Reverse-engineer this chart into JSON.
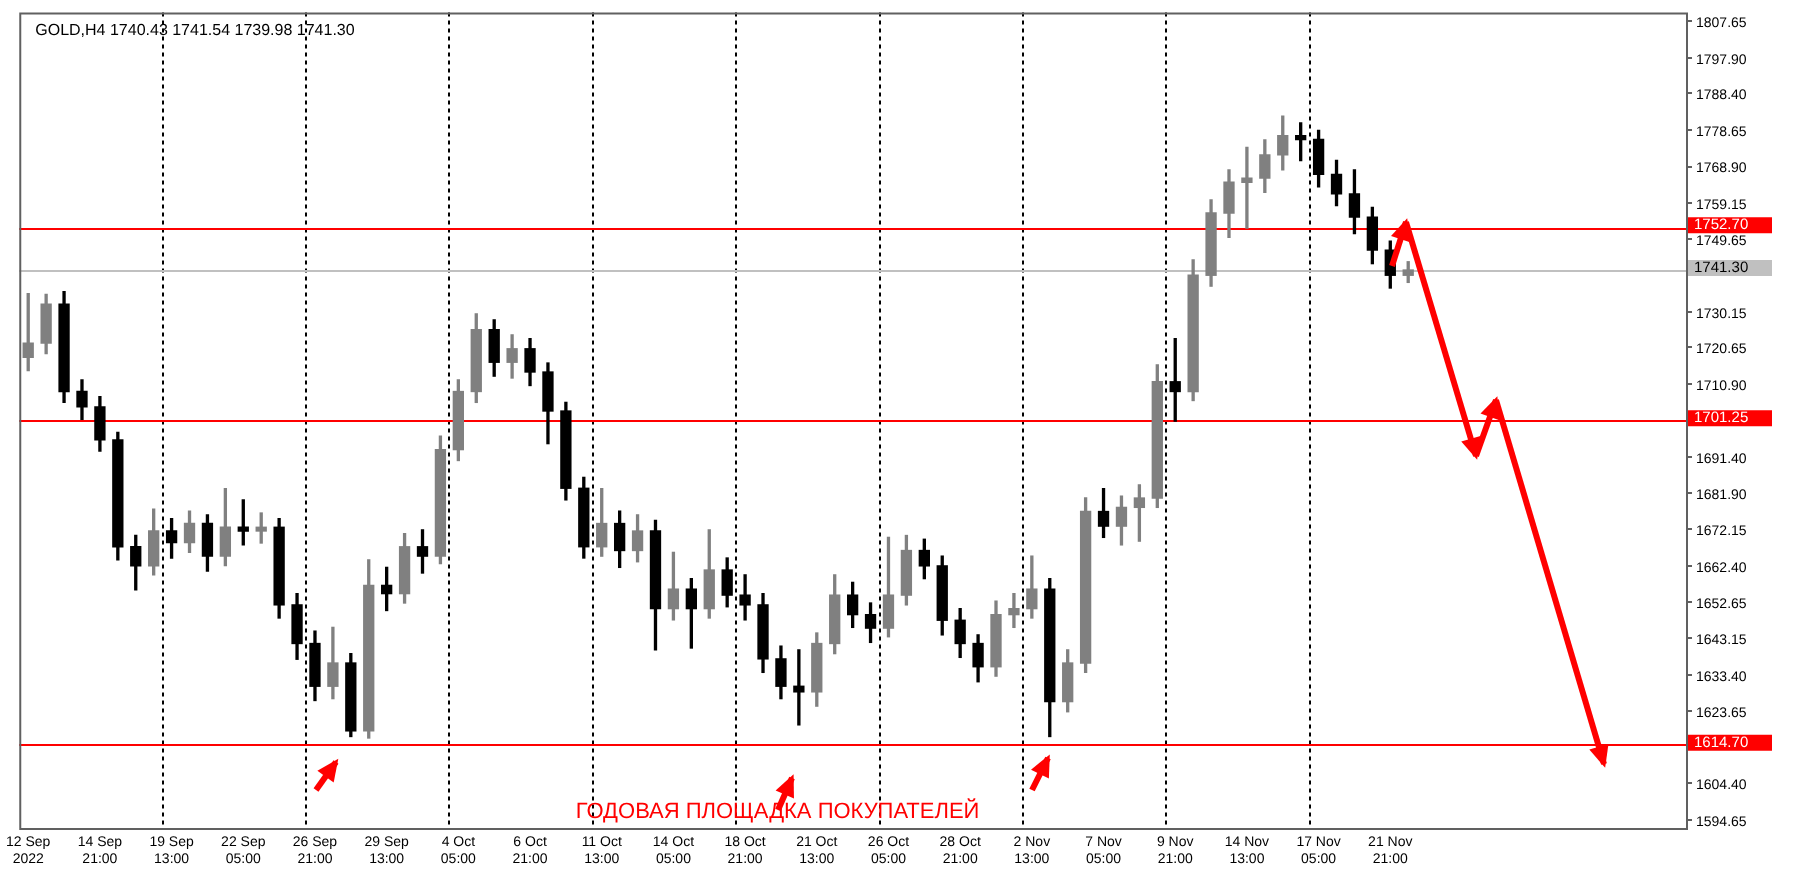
{
  "chart_data": {
    "type": "candlestick",
    "title": "GOLD,H4 1740.43 1741.54 1739.98 1741.30",
    "categories": [
      "12 Sep 2022",
      null,
      null,
      null,
      "14 Sep 21:00",
      null,
      null,
      null,
      "19 Sep 13:00",
      null,
      null,
      null,
      "22 Sep 05:00",
      null,
      null,
      null,
      "26 Sep 21:00",
      null,
      null,
      null,
      "29 Sep 13:00",
      null,
      null,
      null,
      "4 Oct 05:00",
      null,
      null,
      null,
      "6 Oct 21:00",
      null,
      null,
      null,
      "11 Oct 13:00",
      null,
      null,
      null,
      "14 Oct 05:00",
      null,
      null,
      null,
      "18 Oct 21:00",
      null,
      null,
      null,
      "21 Oct 13:00",
      null,
      null,
      null,
      "26 Oct 05:00",
      null,
      null,
      null,
      "28 Oct 21:00",
      null,
      null,
      null,
      "2 Nov 13:00",
      null,
      null,
      null,
      "7 Nov 05:00",
      null,
      null,
      null,
      "9 Nov 21:00",
      null,
      null,
      null,
      "14 Nov 13:00",
      null,
      null,
      null,
      "17 Nov 05:00",
      null,
      null,
      null,
      "21 Nov 21:00",
      null,
      null,
      null,
      null,
      null,
      null,
      null,
      null,
      null,
      null,
      null,
      null,
      null,
      null,
      null,
      null
    ],
    "ohlc": [
      [
        1718.0,
        1735.0,
        1714.5,
        1721.8
      ],
      [
        1721.8,
        1734.8,
        1719.0,
        1732.2
      ],
      [
        1732.2,
        1735.5,
        1706.0,
        1708.9
      ],
      [
        1708.9,
        1712.0,
        1701.5,
        1704.8
      ],
      [
        1704.8,
        1707.5,
        1693.0,
        1696.0
      ],
      [
        1696.0,
        1698.0,
        1664.0,
        1667.5
      ],
      [
        1667.5,
        1670.5,
        1656.0,
        1662.4
      ],
      [
        1662.4,
        1677.5,
        1660.0,
        1671.7
      ],
      [
        1671.7,
        1675.0,
        1664.5,
        1668.6
      ],
      [
        1668.6,
        1677.0,
        1666.0,
        1673.7
      ],
      [
        1673.7,
        1676.0,
        1661.0,
        1665.0
      ],
      [
        1665.0,
        1683.0,
        1662.5,
        1672.7
      ],
      [
        1672.7,
        1680.0,
        1668.0,
        1671.7
      ],
      [
        1671.7,
        1676.5,
        1668.5,
        1672.7
      ],
      [
        1672.7,
        1675.0,
        1648.5,
        1652.0
      ],
      [
        1652.0,
        1655.0,
        1637.5,
        1641.7
      ],
      [
        1641.7,
        1645.0,
        1626.5,
        1630.3
      ],
      [
        1630.3,
        1646.0,
        1627.0,
        1636.5
      ],
      [
        1636.5,
        1639.0,
        1616.9,
        1618.4
      ],
      [
        1618.4,
        1664.0,
        1616.5,
        1657.2
      ],
      [
        1657.2,
        1662.0,
        1650.5,
        1655.0
      ],
      [
        1655.0,
        1671.0,
        1652.5,
        1667.5
      ],
      [
        1667.5,
        1672.0,
        1660.5,
        1665.0
      ],
      [
        1665.0,
        1697.0,
        1663.0,
        1693.4
      ],
      [
        1693.4,
        1712.0,
        1690.5,
        1708.9
      ],
      [
        1708.9,
        1729.6,
        1706.0,
        1725.4
      ],
      [
        1725.4,
        1728.0,
        1713.0,
        1716.7
      ],
      [
        1716.7,
        1724.0,
        1712.5,
        1720.3
      ],
      [
        1720.3,
        1723.0,
        1710.5,
        1714.1
      ],
      [
        1714.1,
        1716.5,
        1695.0,
        1703.7
      ],
      [
        1703.7,
        1706.0,
        1680.0,
        1683.1
      ],
      [
        1683.1,
        1686.0,
        1664.5,
        1667.5
      ],
      [
        1667.5,
        1683.0,
        1665.0,
        1673.7
      ],
      [
        1673.7,
        1677.0,
        1662.0,
        1666.5
      ],
      [
        1666.5,
        1676.0,
        1663.5,
        1671.7
      ],
      [
        1671.7,
        1674.5,
        1640.0,
        1651.0
      ],
      [
        1651.0,
        1666.0,
        1648.0,
        1656.2
      ],
      [
        1656.2,
        1659.0,
        1640.5,
        1651.0
      ],
      [
        1651.0,
        1672.0,
        1648.5,
        1661.3
      ],
      [
        1661.3,
        1664.5,
        1651.5,
        1654.6
      ],
      [
        1654.6,
        1660.0,
        1648.0,
        1652.0
      ],
      [
        1652.0,
        1655.0,
        1634.0,
        1637.6
      ],
      [
        1637.6,
        1641.0,
        1627.0,
        1630.3
      ],
      [
        1630.3,
        1640.0,
        1620.0,
        1628.8
      ],
      [
        1628.8,
        1644.5,
        1625.0,
        1641.7
      ],
      [
        1641.7,
        1660.0,
        1639.0,
        1654.6
      ],
      [
        1654.6,
        1658.0,
        1646.0,
        1649.4
      ],
      [
        1649.4,
        1652.5,
        1642.0,
        1645.8
      ],
      [
        1645.8,
        1670.0,
        1643.5,
        1654.6
      ],
      [
        1654.6,
        1670.5,
        1652.0,
        1666.5
      ],
      [
        1666.5,
        1669.5,
        1659.0,
        1662.4
      ],
      [
        1662.4,
        1665.0,
        1644.0,
        1647.9
      ],
      [
        1647.9,
        1651.0,
        1638.0,
        1641.7
      ],
      [
        1641.7,
        1644.0,
        1631.5,
        1635.5
      ],
      [
        1635.5,
        1653.0,
        1633.0,
        1649.4
      ],
      [
        1649.4,
        1655.0,
        1646.0,
        1651.0
      ],
      [
        1651.0,
        1665.0,
        1648.5,
        1656.2
      ],
      [
        1656.2,
        1659.0,
        1616.9,
        1626.2
      ],
      [
        1626.2,
        1640.0,
        1623.5,
        1636.5
      ],
      [
        1636.5,
        1680.5,
        1634.0,
        1676.9
      ],
      [
        1676.9,
        1683.0,
        1670.0,
        1673.0
      ],
      [
        1673.0,
        1681.0,
        1668.0,
        1678.0
      ],
      [
        1678.0,
        1684.0,
        1669.0,
        1680.5
      ],
      [
        1680.5,
        1716.0,
        1678.0,
        1711.5
      ],
      [
        1711.5,
        1723.0,
        1701.0,
        1708.9
      ],
      [
        1708.9,
        1744.0,
        1706.5,
        1739.9
      ],
      [
        1739.9,
        1760.0,
        1737.0,
        1756.5
      ],
      [
        1756.5,
        1768.0,
        1750.0,
        1764.7
      ],
      [
        1764.7,
        1774.0,
        1752.5,
        1765.8
      ],
      [
        1765.8,
        1776.0,
        1762.0,
        1772.0
      ],
      [
        1772.0,
        1782.3,
        1768.0,
        1777.1
      ],
      [
        1777.1,
        1780.5,
        1770.5,
        1776.1
      ],
      [
        1776.1,
        1778.5,
        1763.5,
        1766.8
      ],
      [
        1766.8,
        1770.5,
        1758.5,
        1761.6
      ],
      [
        1761.6,
        1768.0,
        1751.0,
        1755.4
      ],
      [
        1755.4,
        1758.0,
        1743.0,
        1746.6
      ],
      [
        1746.6,
        1749.0,
        1736.5,
        1739.9
      ],
      [
        1739.9,
        1743.5,
        1738.0,
        1741.3
      ],
      null,
      null,
      null,
      null,
      null,
      null,
      null,
      null,
      null,
      null,
      null,
      null,
      null,
      null,
      null
    ],
    "colors": [
      "#808080",
      "#808080",
      "#000000",
      "#000000",
      "#000000",
      "#000000",
      "#000000",
      "#808080",
      "#000000",
      "#808080",
      "#000000",
      "#808080",
      "#000000",
      "#808080",
      "#000000",
      "#000000",
      "#000000",
      "#808080",
      "#000000",
      "#808080",
      "#000000",
      "#808080",
      "#000000",
      "#808080",
      "#808080",
      "#808080",
      "#000000",
      "#808080",
      "#000000",
      "#000000",
      "#000000",
      "#000000",
      "#808080",
      "#000000",
      "#808080",
      "#000000",
      "#808080",
      "#000000",
      "#808080",
      "#000000",
      "#000000",
      "#000000",
      "#000000",
      "#000000",
      "#808080",
      "#808080",
      "#000000",
      "#000000",
      "#808080",
      "#808080",
      "#000000",
      "#000000",
      "#000000",
      "#000000",
      "#808080",
      "#808080",
      "#808080",
      "#000000",
      "#808080",
      "#808080",
      "#000000",
      "#808080",
      "#808080",
      "#808080",
      "#000000",
      "#808080",
      "#808080",
      "#808080",
      "#808080",
      "#808080",
      "#808080",
      "#000000",
      "#000000",
      "#000000",
      "#000000",
      "#000000",
      "#000000",
      "#808080",
      null,
      null,
      null,
      null,
      null,
      null,
      null,
      null,
      null,
      null,
      null,
      null,
      null,
      null,
      null
    ],
    "ylim": [
      1592.5,
      1810.0
    ],
    "yticks": [
      1807.65,
      {
        "value": 1797.9,
        "label": "1797.90"
      },
      {
        "value": 1788.4,
        "label": "1788.40"
      },
      1778.65,
      {
        "value": 1768.9,
        "label": "1768.90"
      },
      1759.15,
      1749.65,
      1730.15,
      1720.65,
      {
        "value": 1710.9,
        "label": "1710.90"
      },
      {
        "value": 1691.4,
        "label": "1691.40"
      },
      {
        "value": 1681.9,
        "label": "1681.90"
      },
      1672.15,
      {
        "value": 1662.4,
        "label": "1662.40"
      },
      1652.65,
      1643.15,
      {
        "value": 1633.4,
        "label": "1633.40"
      },
      1623.65,
      {
        "value": 1604.4,
        "label": "1604.40"
      },
      1594.65
    ],
    "ref_lines": [
      {
        "axis": "y",
        "value": 1752.7,
        "label": "1752.70",
        "color": "#ff0000"
      },
      {
        "axis": "y",
        "value": 1741.3,
        "label": "1741.30",
        "color": "#c0c0c0"
      },
      {
        "axis": "y",
        "value": 1701.25,
        "label": "1701.25",
        "color": "#ff0000"
      },
      {
        "axis": "y",
        "value": 1614.7,
        "label": "1614.70",
        "color": "#ff0000"
      }
    ],
    "annotations": [
      "ГОДОВАЯ ПЛОЩАДКА ПОКУПАТЕЛЕЙ"
    ],
    "grid": "x",
    "legend": false
  }
}
